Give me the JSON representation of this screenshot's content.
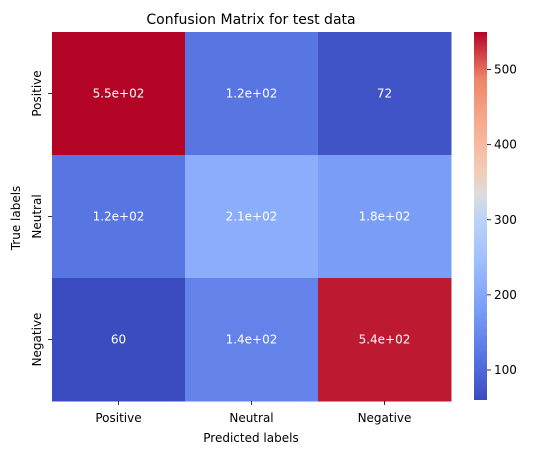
{
  "chart_data": {
    "type": "heatmap",
    "title": "Confusion Matrix for test data",
    "xlabel": "Predicted labels",
    "ylabel": "True labels",
    "x_categories": [
      "Positive",
      "Neutral",
      "Negative"
    ],
    "y_categories": [
      "Positive",
      "Neutral",
      "Negative"
    ],
    "values": [
      [
        550,
        120,
        72
      ],
      [
        120,
        210,
        180
      ],
      [
        60,
        140,
        540
      ]
    ],
    "annotations": [
      [
        "5.5e+02",
        "1.2e+02",
        "72"
      ],
      [
        "1.2e+02",
        "2.1e+02",
        "1.8e+02"
      ],
      [
        "60",
        "1.4e+02",
        "5.4e+02"
      ]
    ],
    "colormap": "coolwarm",
    "vmin": 60,
    "vmax": 550,
    "colorbar_ticks": [
      "100",
      "200",
      "300",
      "400",
      "500"
    ],
    "colorbar_tick_values": [
      100,
      200,
      300,
      400,
      500
    ]
  }
}
